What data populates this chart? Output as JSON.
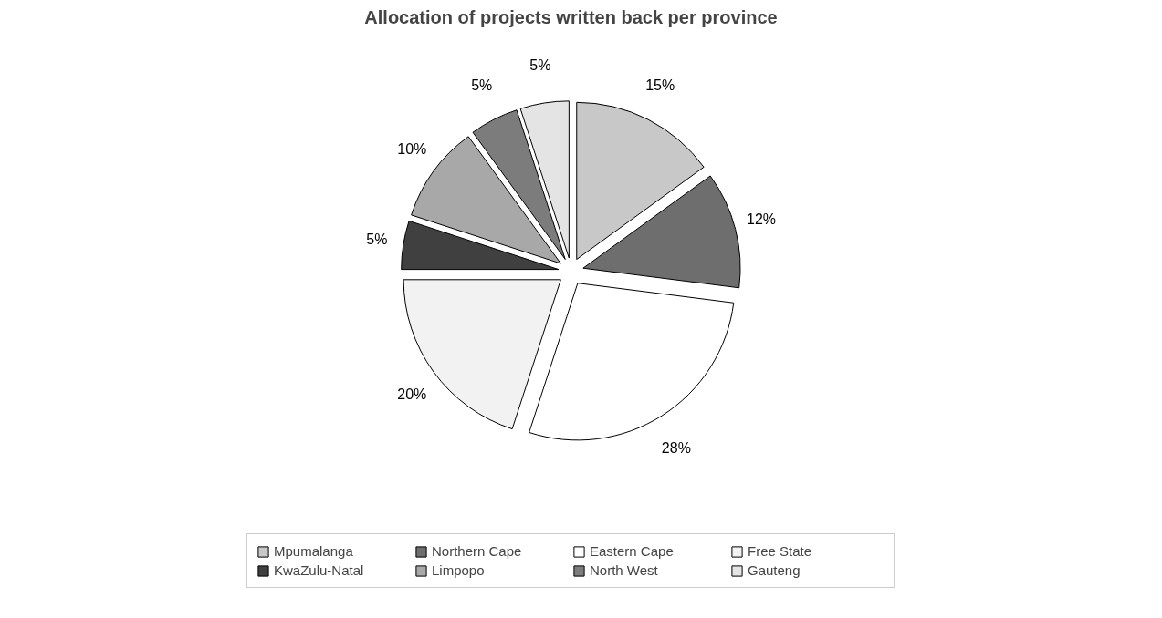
{
  "chart_data": {
    "type": "pie",
    "title": "Allocation of projects written back per province",
    "categories": [
      "Mpumalanga",
      "Northern Cape",
      "Eastern Cape",
      "Free State",
      "KwaZulu-Natal",
      "Limpopo",
      "North West",
      "Gauteng"
    ],
    "values": [
      15,
      12,
      28,
      20,
      5,
      10,
      5,
      5
    ],
    "colors": [
      "#c8c8c8",
      "#6e6e6e",
      "#ffffff",
      "#f2f2f2",
      "#404040",
      "#a8a8a8",
      "#7c7c7c",
      "#e4e4e4"
    ],
    "value_labels": [
      "15%",
      "12%",
      "28%",
      "20%",
      "5%",
      "10%",
      "5%",
      "5%"
    ],
    "legend": "bottom"
  }
}
